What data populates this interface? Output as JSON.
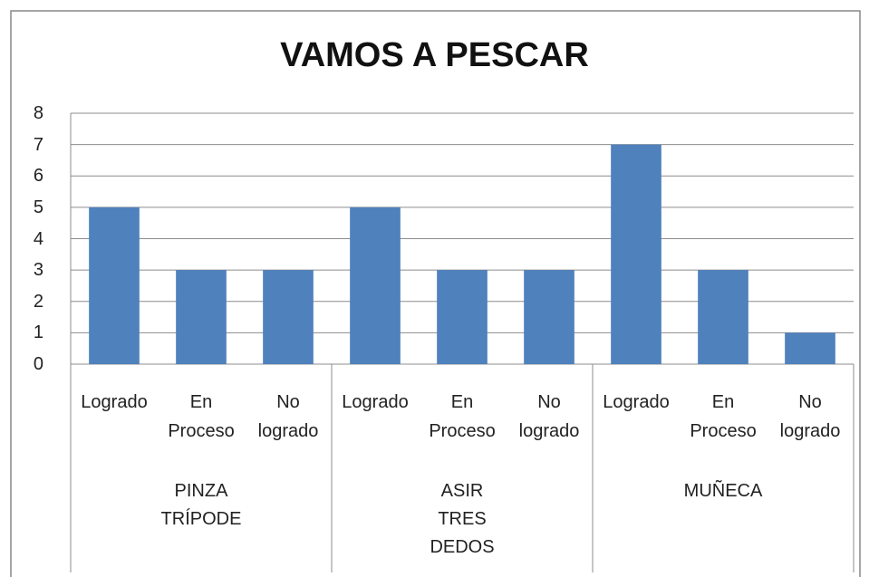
{
  "chart_data": {
    "type": "bar",
    "title": "VAMOS A PESCAR",
    "categories": [
      "Logrado",
      "En Proceso",
      "No logrado",
      "Logrado",
      "En Proceso",
      "No logrado",
      "Logrado",
      "En Proceso",
      "No logrado"
    ],
    "groups": [
      "PINZA TRÍPODE",
      "ASIR TRES DEDOS",
      "MUÑECA"
    ],
    "values": [
      5,
      3,
      3,
      5,
      3,
      3,
      7,
      3,
      1
    ],
    "color": "#4f81bd",
    "ylim": [
      0,
      8
    ],
    "yticks": [
      0,
      1,
      2,
      3,
      4,
      5,
      6,
      7,
      8
    ],
    "grid": true
  }
}
